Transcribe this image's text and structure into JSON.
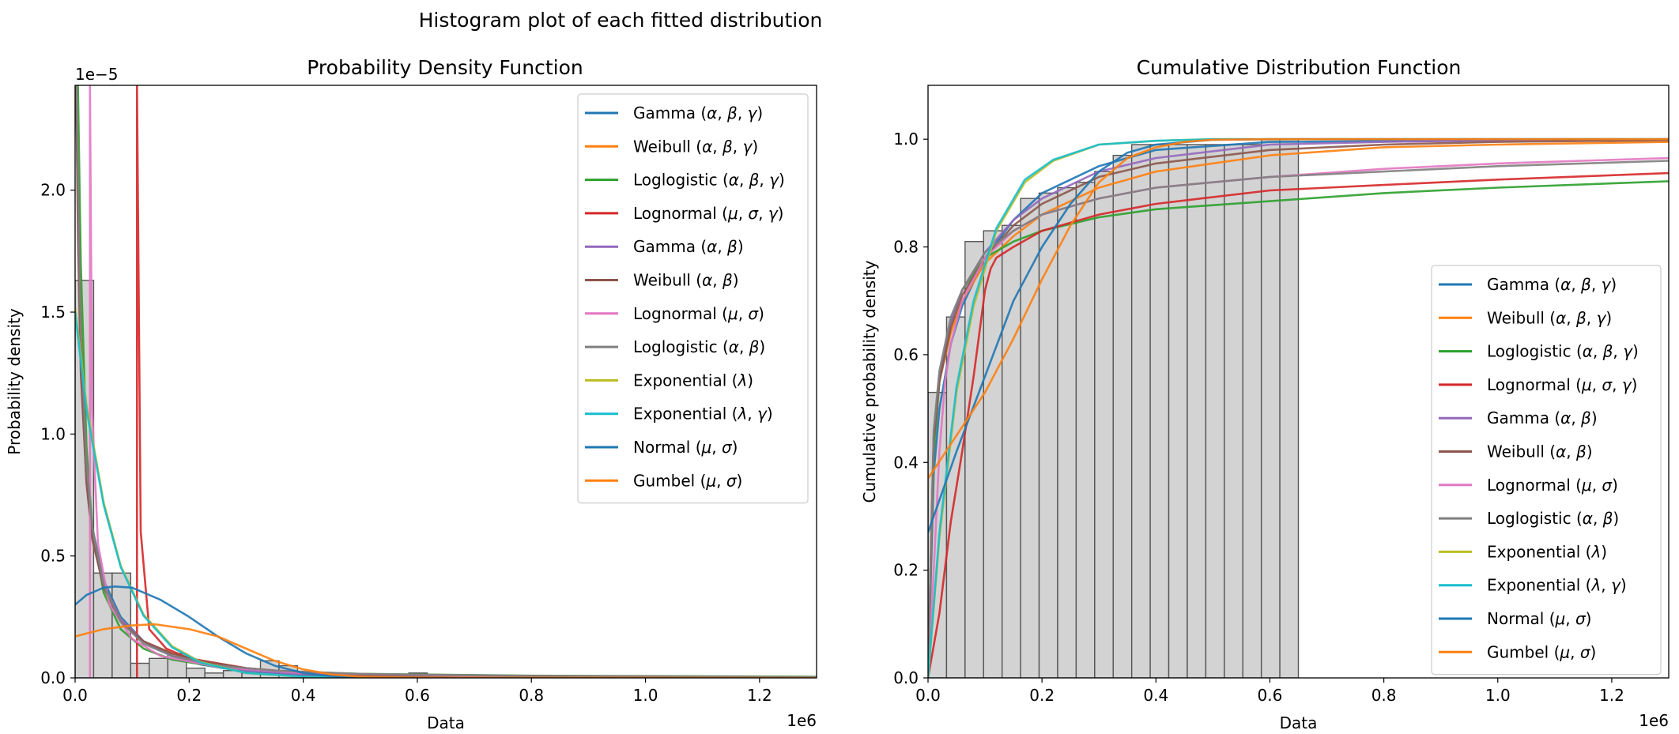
{
  "figure": {
    "suptitle": "Histogram plot of each fitted distribution"
  },
  "colors": {
    "Gamma (α,β,γ)": "#1f77b4",
    "Weibull (α,β,γ)": "#ff7f0e",
    "Loglogistic (α,β,γ)": "#2ca02c",
    "Lognormal (μ,σ,γ)": "#d62728",
    "Gamma (α,β)": "#9467bd",
    "Weibull (α,β)": "#8c564b",
    "Lognormal (μ,σ)": "#e377c2",
    "Loglogistic (α,β)": "#7f7f7f",
    "Exponential (λ)": "#bcbd22",
    "Exponential (λ,γ)": "#17becf",
    "Normal (μ,σ)": "#1f77b4",
    "Gumbel (μ,σ)": "#ff7f0e"
  },
  "chart_data": [
    {
      "type": "line",
      "title": "Probability Density Function",
      "xlabel": "Data",
      "ylabel": "Probability density",
      "x_offset_label": "1e6",
      "y_offset_label": "1e−5",
      "xlim": [
        0,
        1.3
      ],
      "ylim": [
        0,
        2.43
      ],
      "xticks": [
        "0.0",
        "0.2",
        "0.4",
        "0.6",
        "0.8",
        "1.0",
        "1.2"
      ],
      "yticks": [
        "0.0",
        "0.5",
        "1.0",
        "1.5",
        "2.0"
      ],
      "legend_position": "upper right",
      "histogram": {
        "bin_width": 0.0325,
        "heights": [
          1.63,
          0.43,
          0.43,
          0.06,
          0.08,
          0.1,
          0.04,
          0.02,
          0.03,
          0.02,
          0.07,
          0.05,
          0.01,
          0,
          0,
          0,
          0,
          0,
          0.02
        ]
      },
      "series": [
        {
          "name": "Gamma (α,β,γ)",
          "x": [
            0.002,
            0.005,
            0.01,
            0.02,
            0.03,
            0.05,
            0.08,
            0.12,
            0.17,
            0.22,
            0.3,
            0.4,
            0.6,
            1.3
          ],
          "y": [
            2.43,
            1.9,
            1.35,
            0.85,
            0.62,
            0.4,
            0.25,
            0.15,
            0.09,
            0.055,
            0.025,
            0.01,
            0.003,
            0.001
          ]
        },
        {
          "name": "Weibull (α,β,γ)",
          "x": [
            0.002,
            0.005,
            0.01,
            0.02,
            0.03,
            0.05,
            0.08,
            0.12,
            0.17,
            0.22,
            0.3,
            0.4,
            0.6,
            1.3
          ],
          "y": [
            2.43,
            2.2,
            1.5,
            0.9,
            0.6,
            0.38,
            0.24,
            0.15,
            0.1,
            0.07,
            0.04,
            0.02,
            0.006,
            0.002
          ]
        },
        {
          "name": "Loglogistic (α,β,γ)",
          "x": [
            0.005,
            0.01,
            0.02,
            0.03,
            0.05,
            0.08,
            0.12,
            0.17,
            0.25,
            0.35,
            0.5,
            0.8,
            1.3
          ],
          "y": [
            2.43,
            1.7,
            0.95,
            0.62,
            0.35,
            0.2,
            0.12,
            0.075,
            0.045,
            0.028,
            0.017,
            0.009,
            0.005
          ]
        },
        {
          "name": "Lognormal (μ,σ,γ)",
          "x": [
            0.1085,
            0.1085,
            0.1085,
            0.115,
            0.13,
            0.16,
            0.2,
            0.3,
            0.4,
            0.6,
            1.3
          ],
          "y": [
            0,
            1.2,
            2.43,
            0.6,
            0.2,
            0.12,
            0.08,
            0.04,
            0.02,
            0.01,
            0.003
          ]
        },
        {
          "name": "Gamma (α,β)",
          "x": [
            0.002,
            0.005,
            0.01,
            0.02,
            0.03,
            0.05,
            0.08,
            0.12,
            0.17,
            0.22,
            0.3,
            0.4,
            0.6,
            1.3
          ],
          "y": [
            2.43,
            2.0,
            1.3,
            0.8,
            0.58,
            0.38,
            0.24,
            0.15,
            0.09,
            0.06,
            0.03,
            0.015,
            0.004,
            0.001
          ]
        },
        {
          "name": "Weibull (α,β)",
          "x": [
            0.002,
            0.005,
            0.01,
            0.02,
            0.03,
            0.05,
            0.08,
            0.12,
            0.17,
            0.22,
            0.3,
            0.4,
            0.6,
            1.3
          ],
          "y": [
            2.43,
            1.8,
            1.25,
            0.8,
            0.57,
            0.37,
            0.23,
            0.15,
            0.1,
            0.07,
            0.04,
            0.02,
            0.006,
            0.002
          ]
        },
        {
          "name": "Lognormal (μ,σ)",
          "x": [
            0.026,
            0.026,
            0.026,
            0.03,
            0.04,
            0.06,
            0.1,
            0.15,
            0.25,
            0.4,
            0.7,
            1.3
          ],
          "y": [
            0,
            1.2,
            2.43,
            1.1,
            0.55,
            0.3,
            0.16,
            0.09,
            0.045,
            0.02,
            0.008,
            0.003
          ]
        },
        {
          "name": "Loglogistic (α,β)",
          "x": [
            0.003,
            0.006,
            0.01,
            0.02,
            0.03,
            0.05,
            0.08,
            0.12,
            0.17,
            0.25,
            0.35,
            0.5,
            0.8,
            1.3
          ],
          "y": [
            2.43,
            1.9,
            1.4,
            0.88,
            0.62,
            0.38,
            0.23,
            0.14,
            0.09,
            0.05,
            0.03,
            0.016,
            0.008,
            0.004
          ]
        },
        {
          "name": "Exponential (λ)",
          "x": [
            0,
            0.02,
            0.05,
            0.08,
            0.12,
            0.17,
            0.22,
            0.3,
            0.4,
            0.5,
            0.7,
            1.3
          ],
          "y": [
            1.52,
            1.12,
            0.72,
            0.46,
            0.26,
            0.13,
            0.065,
            0.02,
            0.005,
            0.001,
            0,
            0
          ]
        },
        {
          "name": "Exponential (λ,γ)",
          "x": [
            0,
            0.02,
            0.05,
            0.08,
            0.12,
            0.17,
            0.22,
            0.3,
            0.4,
            0.5,
            0.7,
            1.3
          ],
          "y": [
            1.5,
            1.1,
            0.71,
            0.455,
            0.255,
            0.125,
            0.063,
            0.02,
            0.005,
            0.001,
            0,
            0
          ]
        },
        {
          "name": "Normal (μ,σ)",
          "x": [
            0,
            0.02,
            0.05,
            0.07,
            0.1,
            0.15,
            0.2,
            0.25,
            0.3,
            0.35,
            0.4,
            0.45,
            0.5,
            0.6,
            1.3
          ],
          "y": [
            0.3,
            0.34,
            0.37,
            0.375,
            0.37,
            0.32,
            0.25,
            0.17,
            0.1,
            0.05,
            0.02,
            0.007,
            0.002,
            0,
            0
          ]
        },
        {
          "name": "Gumbel (μ,σ)",
          "x": [
            0,
            0.05,
            0.1,
            0.14,
            0.2,
            0.25,
            0.3,
            0.35,
            0.4,
            0.45,
            0.5,
            0.6,
            1.3
          ],
          "y": [
            0.17,
            0.2,
            0.215,
            0.22,
            0.2,
            0.17,
            0.12,
            0.07,
            0.035,
            0.014,
            0.005,
            0.001,
            0
          ]
        }
      ]
    },
    {
      "type": "line",
      "title": "Cumulative Distribution Function",
      "xlabel": "Data",
      "ylabel": "Cumulative probability density",
      "x_offset_label": "1e6",
      "xlim": [
        0,
        1.3
      ],
      "ylim": [
        0,
        1.1
      ],
      "xticks": [
        "0.0",
        "0.2",
        "0.4",
        "0.6",
        "0.8",
        "1.0",
        "1.2"
      ],
      "yticks": [
        "0.0",
        "0.2",
        "0.4",
        "0.6",
        "0.8",
        "1.0"
      ],
      "legend_position": "lower right",
      "histogram": {
        "bin_width": 0.0325,
        "heights": [
          0.53,
          0.67,
          0.81,
          0.83,
          0.84,
          0.89,
          0.9,
          0.91,
          0.92,
          0.94,
          0.97,
          0.99,
          0.99,
          0.99,
          0.99,
          0.99,
          0.99,
          0.99,
          1.0,
          1.0
        ]
      },
      "series": [
        {
          "name": "Gamma (α,β,γ)",
          "x": [
            0,
            0.01,
            0.02,
            0.04,
            0.06,
            0.1,
            0.15,
            0.2,
            0.3,
            0.4,
            0.6,
            1.3
          ],
          "y": [
            0.0,
            0.38,
            0.5,
            0.62,
            0.69,
            0.78,
            0.85,
            0.9,
            0.95,
            0.98,
            0.995,
            1.0
          ]
        },
        {
          "name": "Weibull (α,β,γ)",
          "x": [
            0,
            0.01,
            0.02,
            0.04,
            0.06,
            0.1,
            0.15,
            0.2,
            0.3,
            0.4,
            0.6,
            0.8,
            1.0,
            1.3
          ],
          "y": [
            0.0,
            0.45,
            0.55,
            0.64,
            0.7,
            0.77,
            0.82,
            0.86,
            0.91,
            0.94,
            0.97,
            0.985,
            0.99,
            0.995
          ]
        },
        {
          "name": "Loglogistic (α,β,γ)",
          "x": [
            0,
            0.01,
            0.02,
            0.04,
            0.06,
            0.1,
            0.15,
            0.2,
            0.3,
            0.4,
            0.6,
            0.8,
            1.0,
            1.3
          ],
          "y": [
            0.0,
            0.42,
            0.55,
            0.66,
            0.72,
            0.78,
            0.81,
            0.83,
            0.855,
            0.87,
            0.885,
            0.9,
            0.91,
            0.922
          ]
        },
        {
          "name": "Lognormal (μ,σ,γ)",
          "x": [
            0,
            0.02,
            0.04,
            0.06,
            0.08,
            0.1,
            0.11,
            0.12,
            0.15,
            0.2,
            0.3,
            0.4,
            0.6,
            0.8,
            1.0,
            1.3
          ],
          "y": [
            0.0,
            0.12,
            0.29,
            0.42,
            0.56,
            0.72,
            0.76,
            0.78,
            0.8,
            0.83,
            0.86,
            0.88,
            0.905,
            0.915,
            0.925,
            0.937
          ]
        },
        {
          "name": "Gamma (α,β)",
          "x": [
            0,
            0.01,
            0.02,
            0.04,
            0.06,
            0.1,
            0.15,
            0.2,
            0.3,
            0.4,
            0.6,
            0.8,
            1.0,
            1.3
          ],
          "y": [
            0.0,
            0.45,
            0.56,
            0.66,
            0.72,
            0.79,
            0.85,
            0.89,
            0.94,
            0.965,
            0.99,
            0.995,
            0.998,
            1.0
          ]
        },
        {
          "name": "Weibull (α,β)",
          "x": [
            0,
            0.01,
            0.02,
            0.04,
            0.06,
            0.1,
            0.15,
            0.2,
            0.3,
            0.4,
            0.6,
            0.8,
            1.0,
            1.3
          ],
          "y": [
            0.0,
            0.44,
            0.55,
            0.65,
            0.71,
            0.78,
            0.84,
            0.88,
            0.93,
            0.955,
            0.98,
            0.99,
            0.995,
            0.998
          ]
        },
        {
          "name": "Lognormal (μ,σ)",
          "x": [
            0,
            0.01,
            0.02,
            0.03,
            0.04,
            0.06,
            0.1,
            0.15,
            0.2,
            0.3,
            0.4,
            0.6,
            0.8,
            1.0,
            1.3
          ],
          "y": [
            0.0,
            0.2,
            0.42,
            0.55,
            0.62,
            0.7,
            0.78,
            0.83,
            0.86,
            0.89,
            0.91,
            0.93,
            0.945,
            0.955,
            0.965
          ]
        },
        {
          "name": "Loglogistic (α,β)",
          "x": [
            0,
            0.01,
            0.02,
            0.04,
            0.06,
            0.1,
            0.15,
            0.2,
            0.3,
            0.4,
            0.6,
            0.8,
            1.0,
            1.3
          ],
          "y": [
            0.0,
            0.46,
            0.57,
            0.67,
            0.72,
            0.79,
            0.83,
            0.86,
            0.89,
            0.91,
            0.93,
            0.94,
            0.95,
            0.96
          ]
        },
        {
          "name": "Exponential (λ)",
          "x": [
            0,
            0.02,
            0.05,
            0.08,
            0.12,
            0.17,
            0.22,
            0.3,
            0.4,
            0.5,
            0.7,
            1.3
          ],
          "y": [
            0.0,
            0.26,
            0.53,
            0.69,
            0.83,
            0.92,
            0.96,
            0.99,
            0.997,
            1.0,
            1.0,
            1.0
          ]
        },
        {
          "name": "Exponential (λ,γ)",
          "x": [
            0,
            0.02,
            0.05,
            0.08,
            0.12,
            0.17,
            0.22,
            0.3,
            0.4,
            0.5,
            0.7,
            1.3
          ],
          "y": [
            0.0,
            0.27,
            0.54,
            0.7,
            0.835,
            0.925,
            0.962,
            0.99,
            0.997,
            1.0,
            1.0,
            1.0
          ]
        },
        {
          "name": "Normal (μ,σ)",
          "x": [
            0,
            0.05,
            0.1,
            0.15,
            0.2,
            0.25,
            0.3,
            0.35,
            0.4,
            0.5,
            0.6,
            1.3
          ],
          "y": [
            0.27,
            0.42,
            0.56,
            0.7,
            0.8,
            0.88,
            0.94,
            0.975,
            0.99,
            0.999,
            1.0,
            1.0
          ]
        },
        {
          "name": "Gumbel (μ,σ)",
          "x": [
            0,
            0.05,
            0.1,
            0.15,
            0.2,
            0.25,
            0.3,
            0.35,
            0.4,
            0.45,
            0.5,
            0.6,
            1.3
          ],
          "y": [
            0.37,
            0.45,
            0.53,
            0.63,
            0.74,
            0.84,
            0.92,
            0.965,
            0.985,
            0.995,
            0.999,
            1.0,
            1.0
          ]
        }
      ]
    }
  ]
}
